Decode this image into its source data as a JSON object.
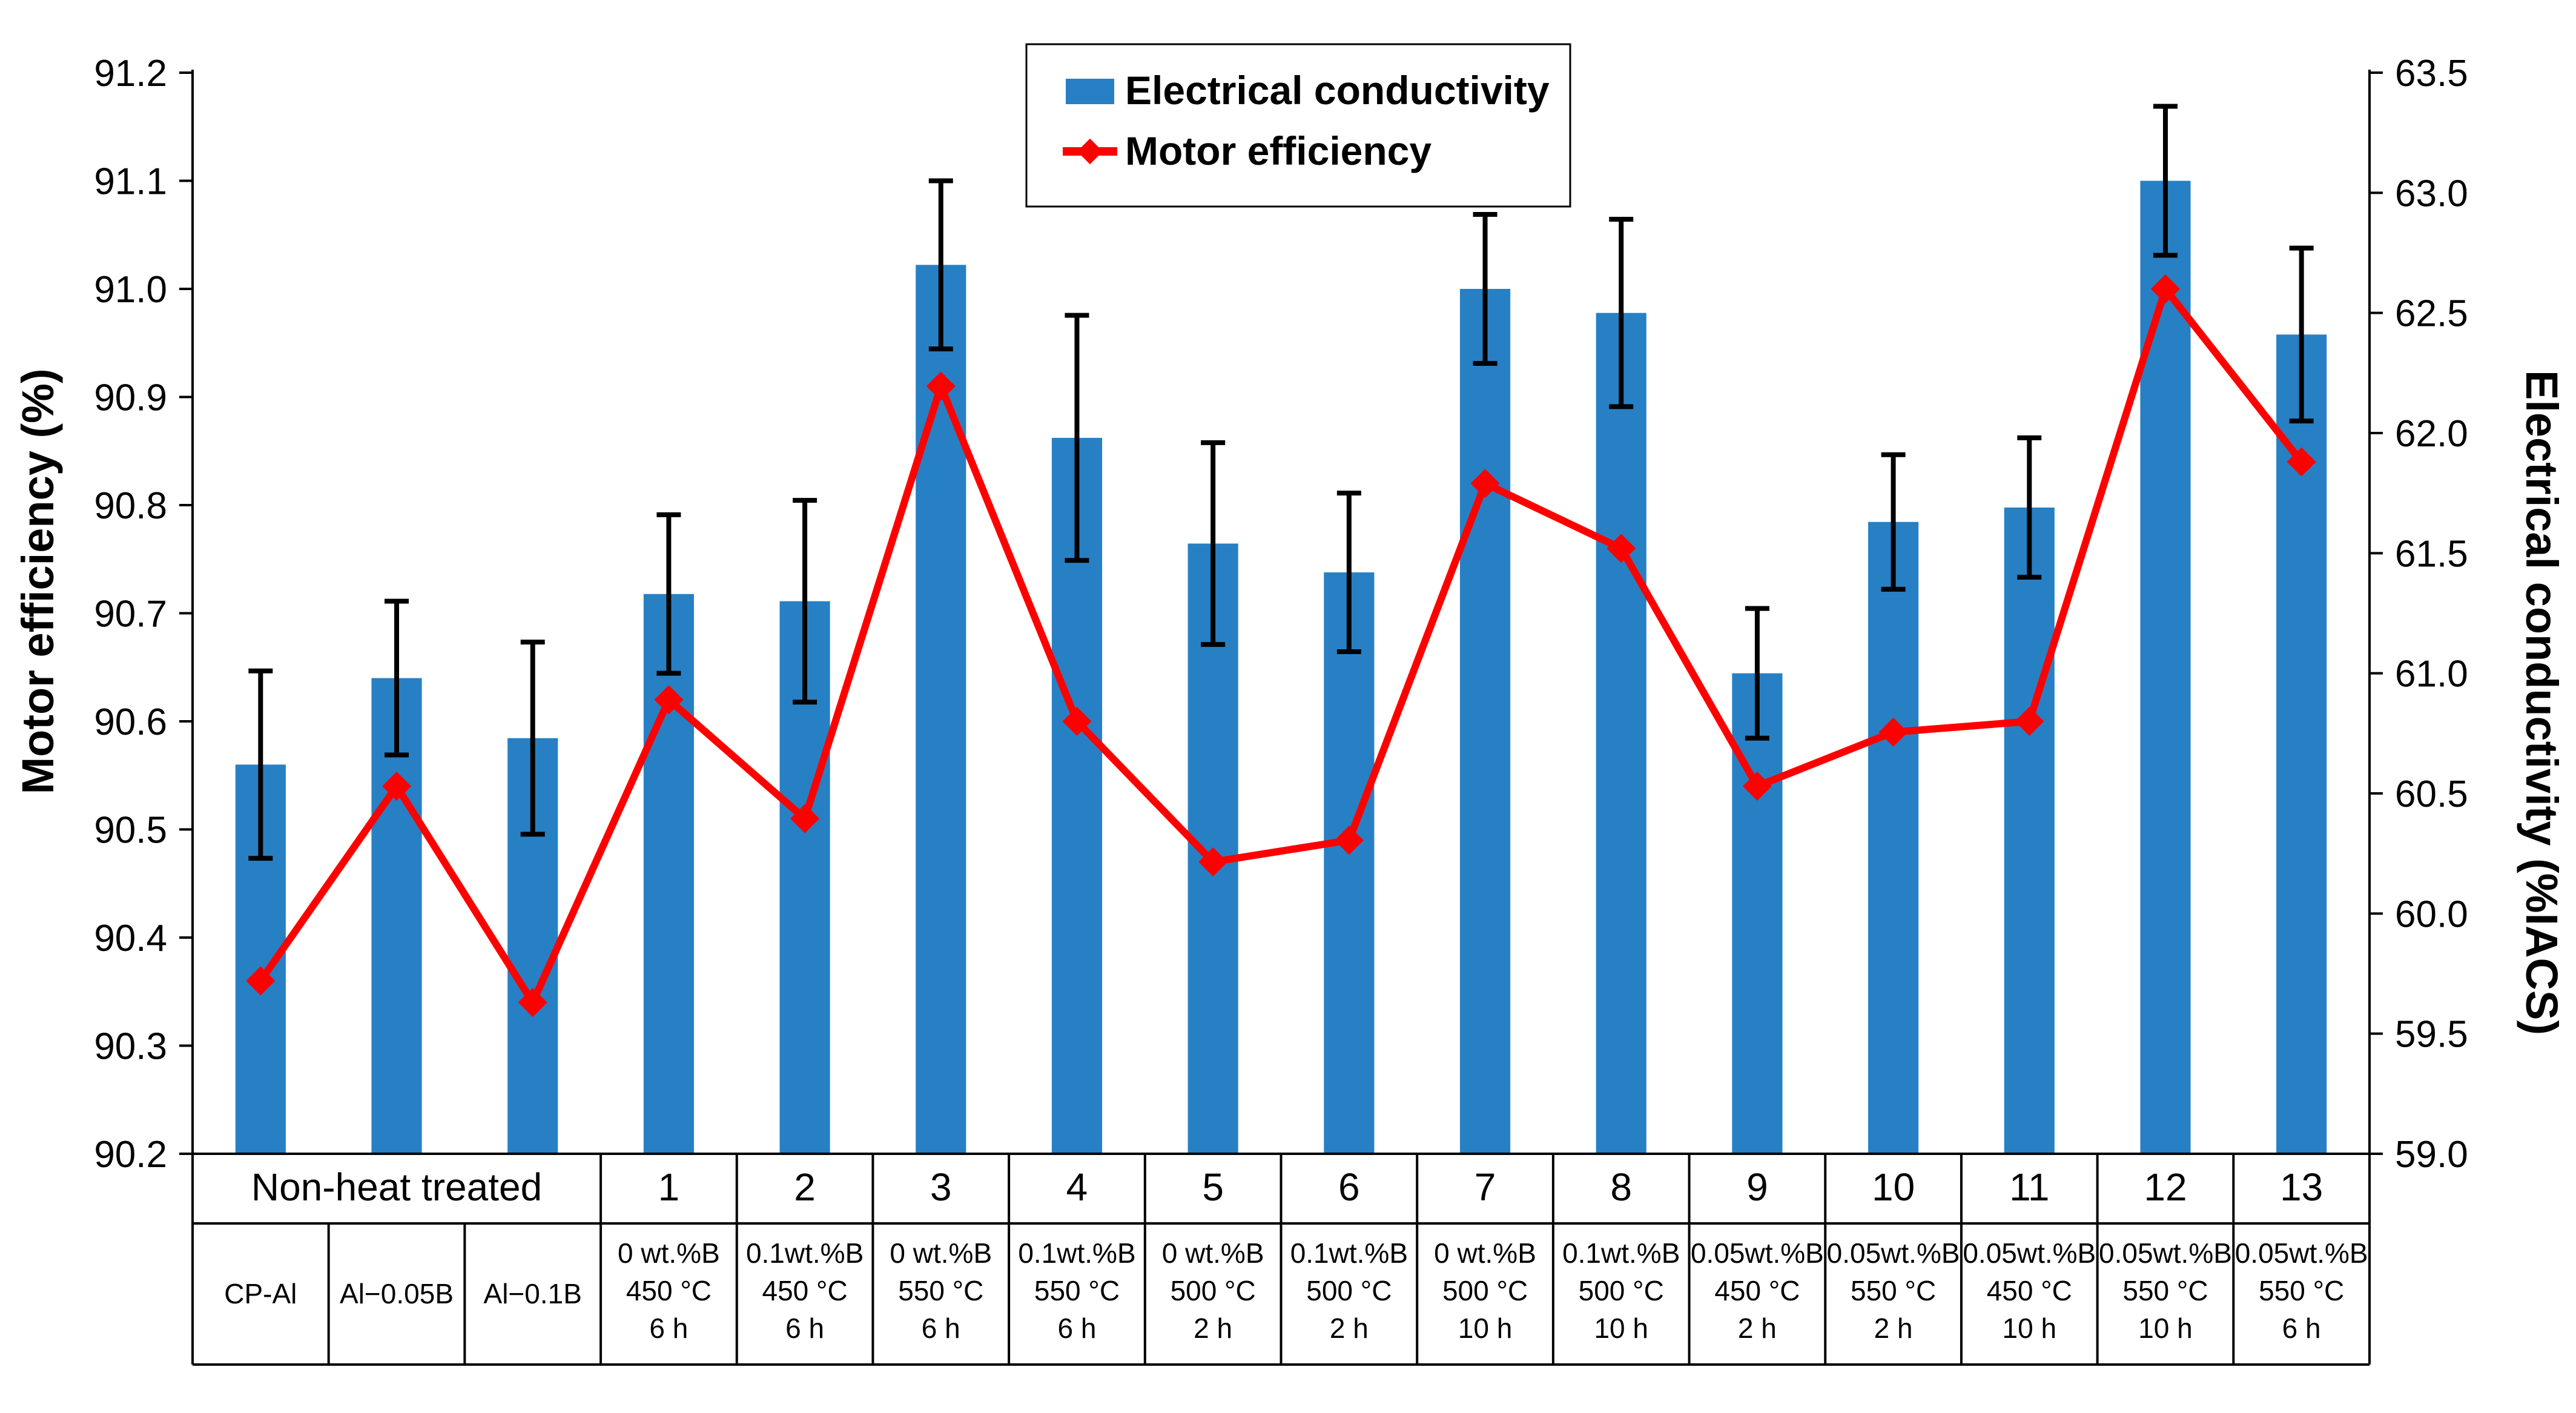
{
  "chart_data": {
    "type": "bar",
    "categories": [
      "CP-Al",
      "Al−0.05B",
      "Al−0.1B",
      "1",
      "2",
      "3",
      "4",
      "5",
      "6",
      "7",
      "8",
      "9",
      "10",
      "11",
      "12",
      "13"
    ],
    "group_header": "Non-heat treated",
    "sample_numbers": [
      "1",
      "2",
      "3",
      "4",
      "5",
      "6",
      "7",
      "8",
      "9",
      "10",
      "11",
      "12",
      "13"
    ],
    "conditions": [
      [
        "0 wt.%B",
        "450 °C",
        "6 h"
      ],
      [
        "0.1wt.%B",
        "450 °C",
        "6 h"
      ],
      [
        "0 wt.%B",
        "550 °C",
        "6 h"
      ],
      [
        "0.1wt.%B",
        "550 °C",
        "6 h"
      ],
      [
        "0 wt.%B",
        "500 °C",
        "2 h"
      ],
      [
        "0.1wt.%B",
        "500 °C",
        "2 h"
      ],
      [
        "0 wt.%B",
        "500 °C",
        "10 h"
      ],
      [
        "0.1wt.%B",
        "500 °C",
        "10 h"
      ],
      [
        "0.05wt.%B",
        "450 °C",
        "2 h"
      ],
      [
        "0.05wt.%B",
        "550 °C",
        "2 h"
      ],
      [
        "0.05wt.%B",
        "450 °C",
        "10 h"
      ],
      [
        "0.05wt.%B",
        "550 °C",
        "10 h"
      ],
      [
        "0.05wt.%B",
        "550 °C",
        "6 h"
      ]
    ],
    "series": [
      {
        "name": "Electrical conductivity",
        "kind": "bar",
        "axis": "right",
        "color": "#2780c4",
        "values": [
          60.62,
          60.98,
          60.73,
          61.33,
          61.3,
          62.7,
          61.98,
          61.54,
          61.42,
          62.6,
          62.5,
          61.0,
          61.63,
          61.69,
          63.05,
          62.41
        ],
        "error": [
          0.39,
          0.32,
          0.4,
          0.33,
          0.42,
          0.35,
          0.51,
          0.42,
          0.33,
          0.31,
          0.39,
          0.27,
          0.28,
          0.29,
          0.31,
          0.36
        ]
      },
      {
        "name": "Motor efficiency",
        "kind": "line",
        "axis": "left",
        "color": "#ff0000",
        "values": [
          90.36,
          90.54,
          90.34,
          90.62,
          90.51,
          90.91,
          90.6,
          90.47,
          90.49,
          90.82,
          90.76,
          90.54,
          90.59,
          90.6,
          91.0,
          90.84
        ]
      }
    ],
    "y_left": {
      "label": "Motor efficiency (%)",
      "min": 90.2,
      "max": 91.2,
      "ticks": [
        "90.2",
        "90.3",
        "90.4",
        "90.5",
        "90.6",
        "90.7",
        "90.8",
        "90.9",
        "91.0",
        "91.1",
        "91.2"
      ]
    },
    "y_right": {
      "label": "Electrical conductivity (%IACS)",
      "min": 59.0,
      "max": 63.5,
      "ticks": [
        "59.0",
        "59.5",
        "60.0",
        "60.5",
        "61.0",
        "61.5",
        "62.0",
        "62.5",
        "63.0",
        "63.5"
      ]
    },
    "legend": {
      "placement": "top-center",
      "entries": [
        "Electrical conductivity",
        "Motor efficiency"
      ]
    },
    "grid": false
  }
}
